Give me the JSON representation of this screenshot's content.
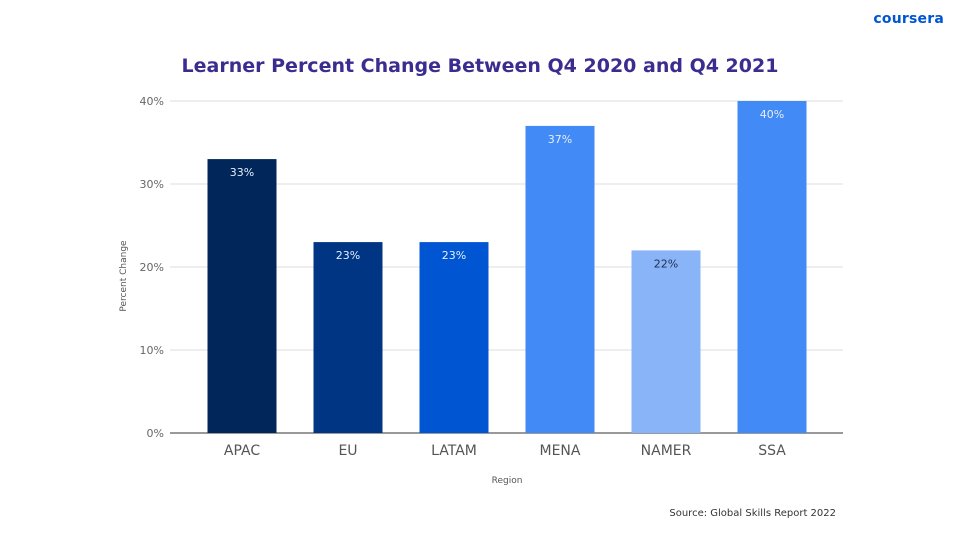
{
  "brand": {
    "logo_text": "coursera",
    "color": "#0056d2"
  },
  "footer": {
    "source": "Source: Global Skills Report 2022"
  },
  "chart_data": {
    "type": "bar",
    "title": "Learner Percent Change Between Q4 2020 and Q4 2021",
    "xlabel": "Region",
    "ylabel": "Percent Change",
    "categories": [
      "APAC",
      "EU",
      "LATAM",
      "MENA",
      "NAMER",
      "SSA"
    ],
    "values": [
      33,
      23,
      23,
      37,
      22,
      40
    ],
    "data_labels": [
      "33%",
      "23%",
      "23%",
      "37%",
      "22%",
      "40%"
    ],
    "colors": [
      "#012659",
      "#003584",
      "#0056d2",
      "#428af5",
      "#8ab4f8",
      "#428af5"
    ],
    "ylim": [
      0,
      40
    ],
    "yticks": [
      0,
      10,
      20,
      30,
      40
    ],
    "ytick_labels": [
      "0%",
      "10%",
      "20%",
      "30%",
      "40%"
    ],
    "grid": true,
    "legend": "none"
  }
}
